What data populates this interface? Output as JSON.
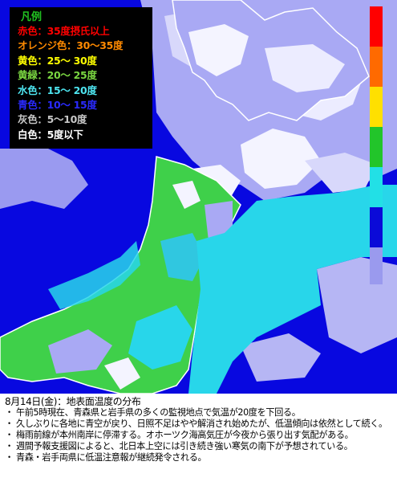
{
  "legend": {
    "title": "凡例",
    "title_color": "#21c421",
    "items": [
      {
        "text": "赤色：35度摂氏以上",
        "color": "#ff0000"
      },
      {
        "text": "オレンジ色：30～35度",
        "color": "#ff8a00"
      },
      {
        "text": "黄色：25～ 30度",
        "color": "#ffff00"
      },
      {
        "text": "黄緑：20～ 25度",
        "color": "#7ad641"
      },
      {
        "text": "水色：15～ 20度",
        "color": "#4ee5f0"
      },
      {
        "text": "青色：10～ 15度",
        "color": "#2a2aff"
      },
      {
        "text": "灰色：5～10度",
        "color": "#c7c7c7"
      },
      {
        "text": "白色：5度以下",
        "color": "#ffffff"
      }
    ]
  },
  "scale": {
    "colors": [
      "#ff0000",
      "#ff6a00",
      "#ffe000",
      "#22c52a",
      "#22e0e6",
      "#0a0ad8",
      "#9a9aee"
    ]
  },
  "map_colors": {
    "sea": "#0808e0",
    "cloud_gray": "#a9a9f4",
    "cloud_white": "#f4f4ff",
    "land_green": "#3fd04a",
    "land_cyan": "#28d6ea",
    "coast": "#ffffff"
  },
  "caption": {
    "title": "8月14日(金)：地表面温度の分布",
    "lines": [
      "・ 午前5時現在、青森県と岩手県の多くの監視地点で気温が20度を下回る。",
      "・ 久しぶりに各地に青空が戻り、日照不足はやや解消され始めたが、低温傾向は依然として続く。",
      "・ 梅雨前線が本州南岸に停滞する。オホーツク海高気圧が今夜から張り出す気配がある。",
      "・ 週間予報支援図によると、北日本上空には引き続き強い寒気の南下が予想されている。",
      "・ 青森・岩手両県に低温注意報が継続発令される。"
    ]
  }
}
